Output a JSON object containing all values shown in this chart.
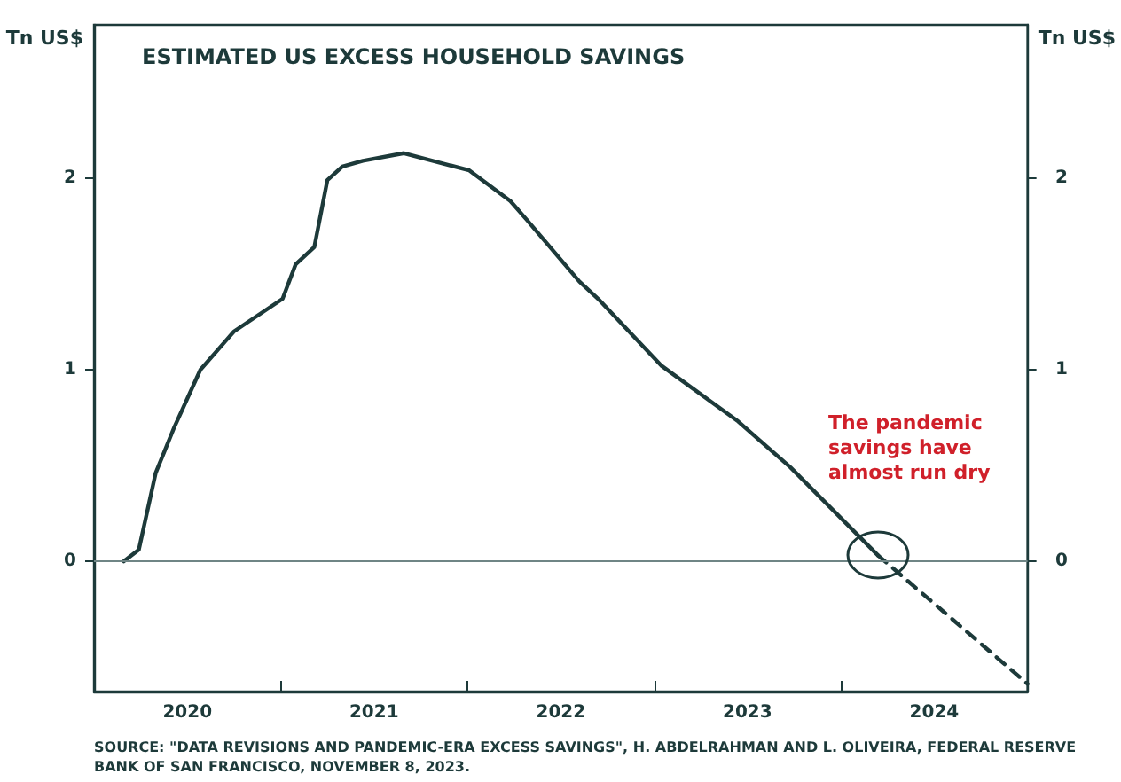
{
  "chart_data": {
    "type": "line",
    "title": "ESTIMATED US EXCESS HOUSEHOLD SAVINGS",
    "ylabel": "Tn US$",
    "y2label": "Tn US$",
    "xlim": [
      2020,
      2025
    ],
    "xticks": [
      {
        "value": 2020.5,
        "label": "2020"
      },
      {
        "value": 2021,
        "label": null
      },
      {
        "value": 2021.5,
        "label": "2021"
      },
      {
        "value": 2022,
        "label": null
      },
      {
        "value": 2022.5,
        "label": "2022"
      },
      {
        "value": 2023,
        "label": null
      },
      {
        "value": 2023.5,
        "label": "2023"
      },
      {
        "value": 2024,
        "label": null
      },
      {
        "value": 2024.5,
        "label": "2024"
      }
    ],
    "ylim": [
      -0.68,
      2.8
    ],
    "yticks": [
      0,
      1,
      2
    ],
    "y2lim": [
      -0.68,
      2.8
    ],
    "y2ticks": [
      0,
      1,
      2
    ],
    "grid": false,
    "marker": "none",
    "series": [
      {
        "color": "#1d3a3a",
        "line_style": "solid",
        "x": [
          2020.16,
          2020.24,
          2020.33,
          2020.43,
          2020.57,
          2020.75,
          2021.01,
          2021.08,
          2021.18,
          2021.25,
          2021.33,
          2021.44,
          2021.66,
          2022.01,
          2022.23,
          2022.32,
          2022.6,
          2022.7,
          2023.04,
          2023.45,
          2023.73,
          2024.2
        ],
        "values": [
          0,
          0.06,
          0.46,
          0.7,
          1,
          1.2,
          1.37,
          1.55,
          1.64,
          1.99,
          2.06,
          2.09,
          2.13,
          2.04,
          1.88,
          1.78,
          1.46,
          1.37,
          1.02,
          0.73,
          0.49,
          0.03
        ]
      },
      {
        "color": "#1d3a3a",
        "line_style": "dashed",
        "x": [
          2024.2,
          2025
        ],
        "values": [
          0.03,
          -0.64
        ]
      }
    ],
    "ref_lines": [
      {
        "axis": "y",
        "value": 0,
        "color": "#6f8585"
      }
    ],
    "annotations": [
      "The pandemic savings have almost run dry",
      "SOURCE: \"DATA REVISIONS AND PANDEMIC-ERA EXCESS SAVINGS\", H. ABDELRAHMAN AND L. OLIVEIRA, FEDERAL RESERVE BANK OF SAN FRANCISCO, NOVEMBER 8, 2023."
    ]
  }
}
